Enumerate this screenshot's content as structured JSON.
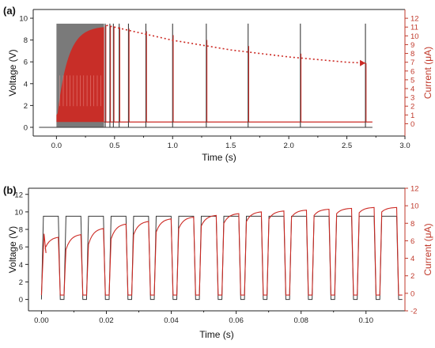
{
  "chart_data": [
    {
      "panel_label": "(a)",
      "type": "line",
      "xlabel": "Time (s)",
      "ylabel_left": "Voltage (V)",
      "ylabel_right": "Current (μA)",
      "xlim": [
        -0.2,
        3.0
      ],
      "ylim_left": [
        -0.8,
        10.8
      ],
      "ylim_right": [
        -1.4,
        13.0
      ],
      "x_ticks": [
        0.0,
        0.5,
        1.0,
        1.5,
        2.0,
        2.5,
        3.0
      ],
      "x_tick_labels": [
        "0.0",
        "0.5",
        "1.0",
        "1.5",
        "2.0",
        "2.5",
        "3.0"
      ],
      "y_left_ticks": [
        0,
        2,
        4,
        6,
        8,
        10
      ],
      "y_left_tick_labels": [
        "0",
        "2",
        "4",
        "6",
        "8",
        "10"
      ],
      "y_right_ticks": [
        0,
        1,
        2,
        3,
        4,
        5,
        6,
        7,
        8,
        9,
        10,
        11,
        12
      ],
      "y_right_tick_labels": [
        "0",
        "1",
        "2",
        "3",
        "4",
        "5",
        "6",
        "7",
        "8",
        "9",
        "10",
        "11",
        "12"
      ],
      "voltage_high": 9.5,
      "voltage_low": 0.0,
      "dense_pulse_region": [
        0.0,
        0.41
      ],
      "isolated_pulse_times": [
        0.42,
        0.46,
        0.49,
        0.54,
        0.62,
        0.77,
        1.0,
        1.29,
        1.65,
        2.1,
        2.66
      ],
      "current_baseline": 0.2,
      "current_envelope_peak": 11.0,
      "decay_arrow": {
        "x": [
          0.43,
          1.0,
          1.5,
          2.0,
          2.5,
          2.66
        ],
        "y": [
          11.2,
          9.5,
          8.4,
          7.6,
          7.0,
          6.9
        ]
      },
      "grid": false
    },
    {
      "panel_label": "(b)",
      "type": "line",
      "xlabel": "Time (s)",
      "ylabel_left": "Voltage (V)",
      "ylabel_right": "Current (μA)",
      "xlim": [
        -0.004,
        0.112
      ],
      "ylim_left": [
        -1.3,
        12.7
      ],
      "ylim_right": [
        -2.0,
        12.0
      ],
      "x_ticks": [
        0.0,
        0.02,
        0.04,
        0.06,
        0.08,
        0.1
      ],
      "x_tick_labels": [
        "0.00",
        "0.02",
        "0.04",
        "0.06",
        "0.08",
        "0.10"
      ],
      "y_left_ticks": [
        0,
        2,
        4,
        6,
        8,
        10,
        12
      ],
      "y_left_tick_labels": [
        "0",
        "2",
        "4",
        "6",
        "8",
        "10",
        "12"
      ],
      "y_right_ticks": [
        -2,
        0,
        2,
        4,
        6,
        8,
        10,
        12
      ],
      "y_right_tick_labels": [
        "-2",
        "0",
        "2",
        "4",
        "6",
        "8",
        "10",
        "12"
      ],
      "voltage_pulse_period": 0.00695,
      "voltage_pulse_width": 0.0052,
      "voltage_high": 9.5,
      "voltage_low": 0.0,
      "current_pulse_peaks": [
        6.4,
        6.7,
        7.4,
        7.9,
        8.2,
        8.5,
        8.7,
        8.9,
        9.1,
        9.3,
        9.4,
        9.5,
        9.6,
        9.7,
        9.8,
        9.8
      ],
      "current_pulse_starts": [
        4.6,
        5.0,
        5.6,
        6.2,
        6.7,
        7.0,
        7.4,
        7.7,
        8.0,
        8.2,
        8.5,
        8.7,
        8.9,
        9.1,
        9.2,
        9.3
      ],
      "current_low": -0.2,
      "grid": false
    }
  ],
  "colors": {
    "voltage": "#3a3a3a",
    "current": "#cc2a24",
    "right_axis": "#c0392b",
    "axis": "#222222"
  }
}
